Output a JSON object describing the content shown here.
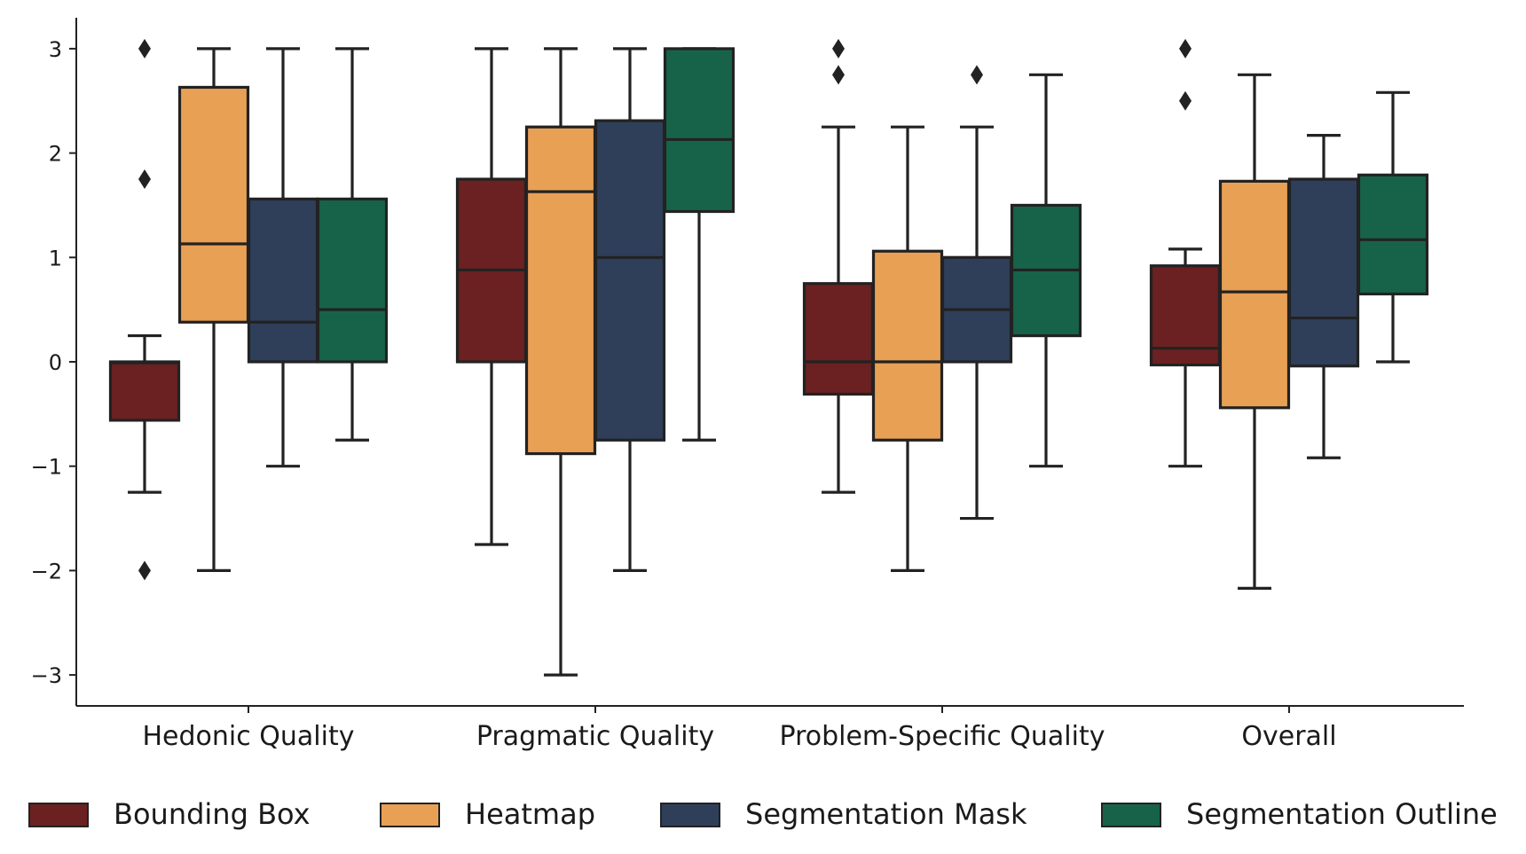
{
  "chart_data": {
    "type": "box",
    "title": "",
    "xlabel": "",
    "ylabel": "",
    "ylim": [
      -3.3,
      3.3
    ],
    "yticks": [
      3,
      2,
      1,
      0,
      -1,
      -2,
      -3
    ],
    "ytick_labels": [
      "3",
      "2",
      "1",
      "0",
      "−1",
      "−2",
      "−3"
    ],
    "categories": [
      "Hedonic Quality",
      "Pragmatic Quality",
      "Problem-Specific Quality",
      "Overall"
    ],
    "legend_position": "bottom",
    "series": [
      {
        "name": "Bounding Box",
        "color": "#6b2121",
        "boxes": [
          {
            "q1": -0.56,
            "median": -0.01,
            "q3": 0.0,
            "whisker_low": -1.25,
            "whisker_high": 0.25,
            "outliers": [
              3.0,
              1.75,
              -2.0
            ]
          },
          {
            "q1": 0.0,
            "median": 0.88,
            "q3": 1.75,
            "whisker_low": -1.75,
            "whisker_high": 3.0,
            "outliers": []
          },
          {
            "q1": -0.31,
            "median": 0.0,
            "q3": 0.75,
            "whisker_low": -1.25,
            "whisker_high": 2.25,
            "outliers": [
              3.0,
              2.75
            ]
          },
          {
            "q1": -0.03,
            "median": 0.13,
            "q3": 0.92,
            "whisker_low": -1.0,
            "whisker_high": 1.08,
            "outliers": [
              3.0,
              2.5
            ]
          }
        ]
      },
      {
        "name": "Heatmap",
        "color": "#e8a055",
        "boxes": [
          {
            "q1": 0.38,
            "median": 1.13,
            "q3": 2.63,
            "whisker_low": -2.0,
            "whisker_high": 3.0,
            "outliers": []
          },
          {
            "q1": -0.88,
            "median": 1.63,
            "q3": 2.25,
            "whisker_low": -3.0,
            "whisker_high": 3.0,
            "outliers": []
          },
          {
            "q1": -0.75,
            "median": 0.0,
            "q3": 1.06,
            "whisker_low": -2.0,
            "whisker_high": 2.25,
            "outliers": []
          },
          {
            "q1": -0.44,
            "median": 0.67,
            "q3": 1.73,
            "whisker_low": -2.17,
            "whisker_high": 2.75,
            "outliers": []
          }
        ]
      },
      {
        "name": "Segmentation Mask",
        "color": "#2f3f5a",
        "boxes": [
          {
            "q1": 0.0,
            "median": 0.38,
            "q3": 1.56,
            "whisker_low": -1.0,
            "whisker_high": 3.0,
            "outliers": []
          },
          {
            "q1": -0.75,
            "median": 1.0,
            "q3": 2.31,
            "whisker_low": -2.0,
            "whisker_high": 3.0,
            "outliers": []
          },
          {
            "q1": 0.0,
            "median": 0.5,
            "q3": 1.0,
            "whisker_low": -1.5,
            "whisker_high": 2.25,
            "outliers": [
              2.75
            ]
          },
          {
            "q1": -0.04,
            "median": 0.42,
            "q3": 1.75,
            "whisker_low": -0.92,
            "whisker_high": 2.17,
            "outliers": []
          }
        ]
      },
      {
        "name": "Segmentation Outline",
        "color": "#17634a",
        "boxes": [
          {
            "q1": 0.0,
            "median": 0.5,
            "q3": 1.56,
            "whisker_low": -0.75,
            "whisker_high": 3.0,
            "outliers": []
          },
          {
            "q1": 1.44,
            "median": 2.13,
            "q3": 3.0,
            "whisker_low": -0.75,
            "whisker_high": 3.0,
            "outliers": []
          },
          {
            "q1": 0.25,
            "median": 0.88,
            "q3": 1.5,
            "whisker_low": -1.0,
            "whisker_high": 2.75,
            "outliers": []
          },
          {
            "q1": 0.65,
            "median": 1.17,
            "q3": 1.79,
            "whisker_low": 0.0,
            "whisker_high": 2.58,
            "outliers": []
          }
        ]
      }
    ]
  }
}
